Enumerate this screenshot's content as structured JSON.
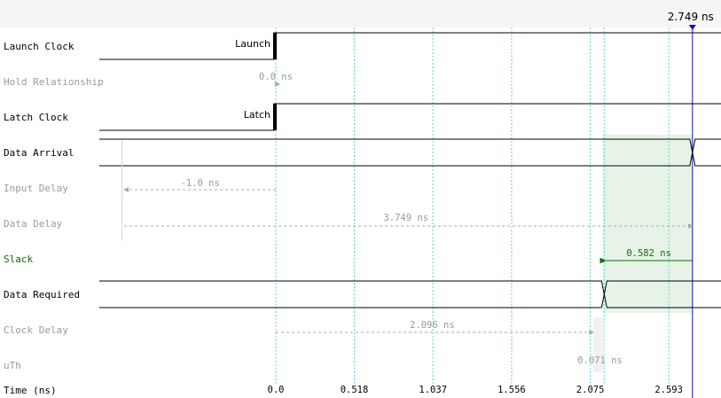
{
  "rows": [
    {
      "key": "launch_clock",
      "label": "Launch Clock",
      "style": "dark"
    },
    {
      "key": "hold_relationship",
      "label": "Hold Relationship",
      "style": "dim"
    },
    {
      "key": "latch_clock",
      "label": "Latch Clock",
      "style": "dark"
    },
    {
      "key": "data_arrival",
      "label": "Data Arrival",
      "style": "dark"
    },
    {
      "key": "input_delay",
      "label": "Input Delay",
      "style": "dim"
    },
    {
      "key": "data_delay",
      "label": "Data Delay",
      "style": "dim"
    },
    {
      "key": "slack",
      "label": "Slack",
      "style": "green"
    },
    {
      "key": "data_required",
      "label": "Data Required",
      "style": "dark"
    },
    {
      "key": "clock_delay",
      "label": "Clock Delay",
      "style": "dim"
    },
    {
      "key": "uth",
      "label": "uTh",
      "style": "dim"
    }
  ],
  "axis": {
    "label": "Time (ns)",
    "ticks": [
      "0.0",
      "0.518",
      "1.037",
      "1.556",
      "2.075",
      "2.593"
    ],
    "tick_values": [
      0.0,
      0.518,
      1.037,
      1.556,
      2.075,
      2.593
    ]
  },
  "marker": {
    "label": "2.749 ns",
    "time": 2.749
  },
  "edges": {
    "launch_label": "Launch",
    "latch_label": "Latch"
  },
  "measurements": {
    "hold_relationship": {
      "label": "0.0 ns",
      "value": 0.0
    },
    "input_delay": {
      "label": "-1.0 ns",
      "value": -1.0
    },
    "data_delay": {
      "label": "3.749 ns",
      "value": 3.749
    },
    "slack": {
      "label": "0.582 ns",
      "value": 0.582
    },
    "clock_delay": {
      "label": "2.096 ns",
      "value": 2.096
    },
    "uth": {
      "label": "0.071 ns",
      "value": 0.071
    }
  },
  "colors": {
    "gridline": "#5fd0d8",
    "marker_line": "#1010cc",
    "slack": "#0a6e0a",
    "slack_fill": "#e8f3e8",
    "measure": "#aaaaaa",
    "header_bg": "#f5f5f5"
  }
}
